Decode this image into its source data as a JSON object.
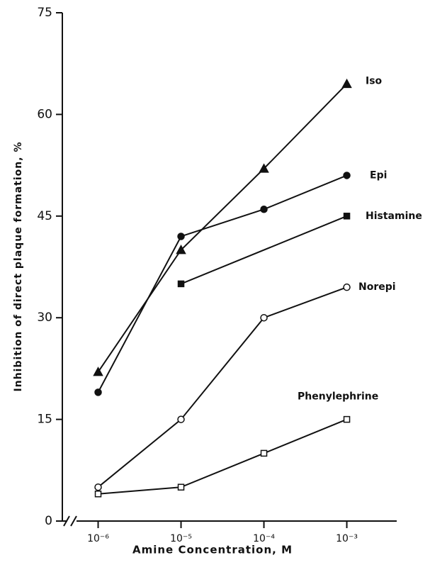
{
  "chart_data": {
    "type": "line",
    "x_label": "Amine Concentration, M",
    "y_label": "Inhibition of direct plaque formation, %",
    "xscale": "log",
    "xlim": [
      3.7e-07,
      0.004
    ],
    "xticks": [
      {
        "value": 1e-06,
        "label": "10⁻⁶"
      },
      {
        "value": 1e-05,
        "label": "10⁻⁵"
      },
      {
        "value": 0.0001,
        "label": "10⁻⁴"
      },
      {
        "value": 0.001,
        "label": "10⁻³"
      }
    ],
    "ylim": [
      0,
      75
    ],
    "yticks": [
      0,
      15,
      30,
      45,
      60,
      75
    ],
    "series": [
      {
        "name": "Iso",
        "color": "#111",
        "marker": "triangle",
        "open": false,
        "x": [
          1e-06,
          1e-05,
          0.0001,
          0.001
        ],
        "values": [
          22,
          40,
          52,
          64.5
        ]
      },
      {
        "name": "Epi",
        "color": "#111",
        "marker": "circle",
        "open": false,
        "x": [
          1e-06,
          1e-05,
          0.0001,
          0.001
        ],
        "values": [
          19,
          42,
          46,
          51
        ]
      },
      {
        "name": "Histamine",
        "color": "#111",
        "marker": "square",
        "open": false,
        "x": [
          1e-05,
          0.001
        ],
        "values": [
          35,
          45
        ]
      },
      {
        "name": "Norepi",
        "color": "#111",
        "marker": "circle",
        "open": true,
        "x": [
          1e-06,
          1e-05,
          0.0001,
          0.001
        ],
        "values": [
          5,
          15,
          30,
          34.5
        ]
      },
      {
        "name": "Phenylephrine",
        "color": "#111",
        "marker": "square",
        "open": true,
        "x": [
          1e-06,
          1e-05,
          0.0001,
          0.001
        ],
        "values": [
          4,
          5,
          10,
          15
        ]
      }
    ]
  }
}
